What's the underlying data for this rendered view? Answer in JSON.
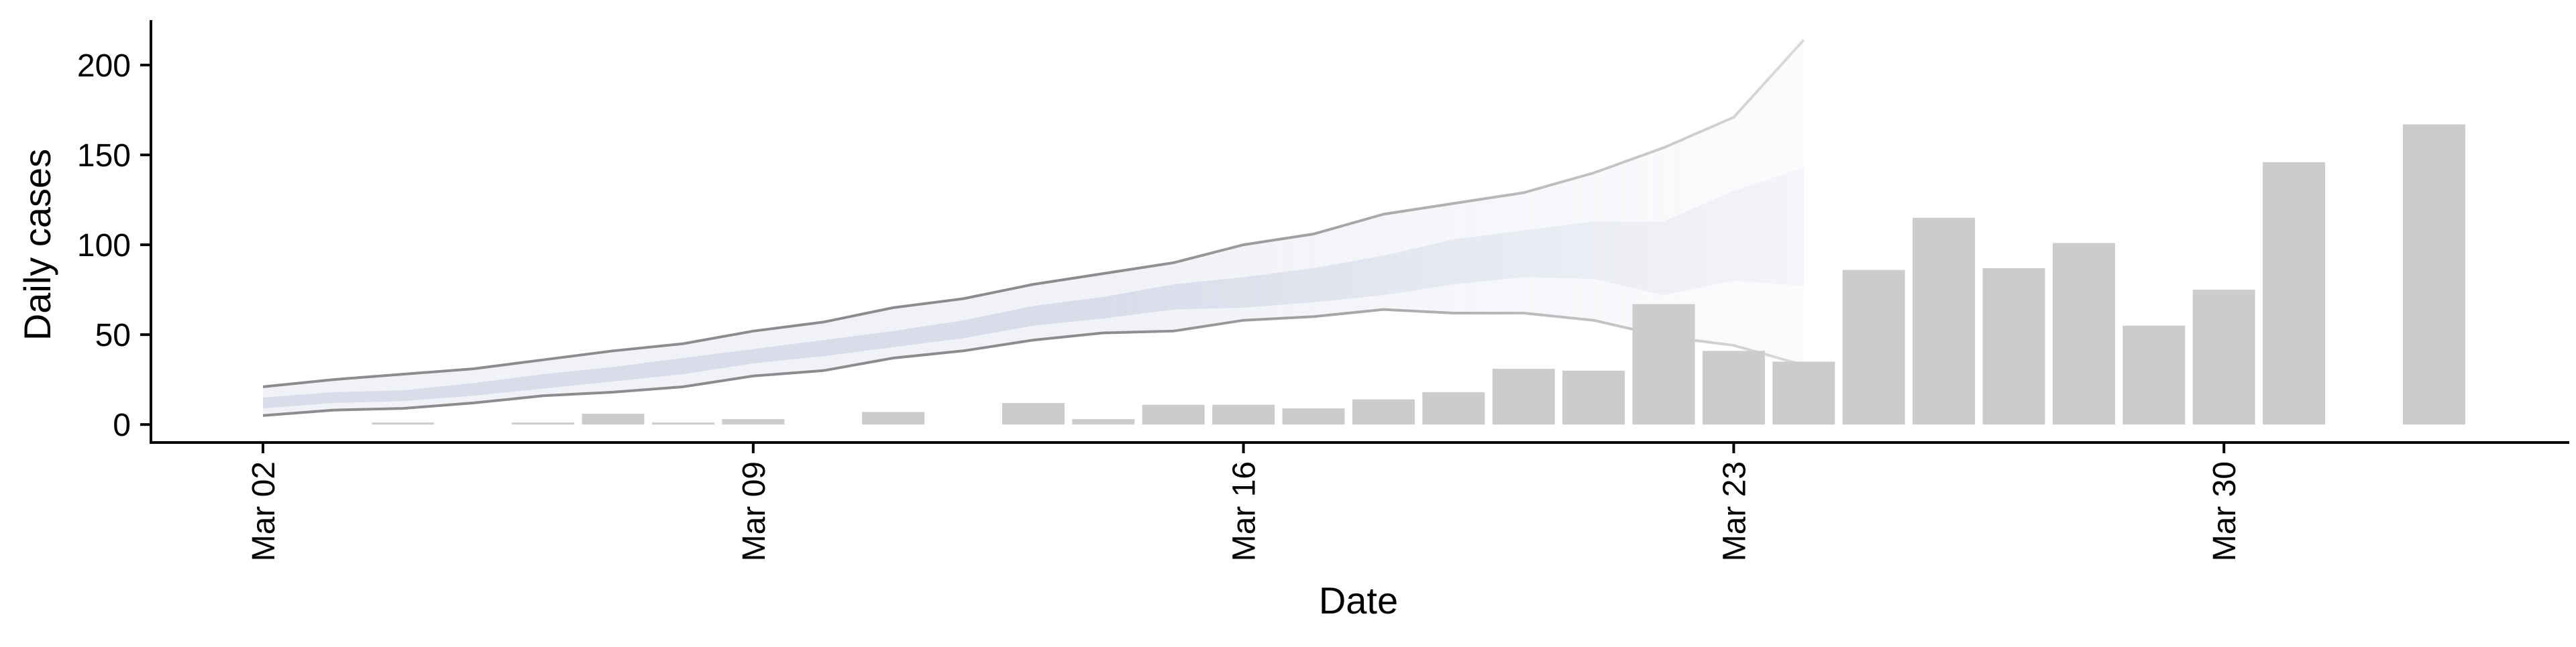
{
  "chart_data": {
    "type": "bar",
    "xlabel": "Date",
    "ylabel": "Daily cases",
    "x_ticks": [
      "Mar 02",
      "Mar 09",
      "Mar 16",
      "Mar 23",
      "Mar 30"
    ],
    "y_ticks": [
      0,
      50,
      100,
      150,
      200
    ],
    "ylim": [
      -10,
      225
    ],
    "grid": false,
    "legend": "none",
    "bars": {
      "color": "#cccccc",
      "dates": [
        "Mar 04",
        "Mar 06",
        "Mar 07",
        "Mar 08",
        "Mar 09",
        "Mar 11",
        "Mar 13",
        "Mar 14",
        "Mar 15",
        "Mar 16",
        "Mar 17",
        "Mar 18",
        "Mar 19",
        "Mar 20",
        "Mar 21",
        "Mar 22",
        "Mar 23",
        "Mar 24",
        "Mar 25",
        "Mar 26",
        "Mar 27",
        "Mar 28",
        "Mar 29",
        "Mar 30",
        "Mar 31",
        "Apr 02"
      ],
      "values": [
        1,
        1,
        6,
        1,
        3,
        7,
        12,
        3,
        11,
        11,
        9,
        14,
        18,
        31,
        30,
        67,
        41,
        35,
        86,
        115,
        87,
        101,
        55,
        75,
        146,
        167
      ]
    },
    "forecast": {
      "dates": [
        "Mar 02",
        "Mar 03",
        "Mar 04",
        "Mar 05",
        "Mar 06",
        "Mar 07",
        "Mar 08",
        "Mar 09",
        "Mar 10",
        "Mar 11",
        "Mar 12",
        "Mar 13",
        "Mar 14",
        "Mar 15",
        "Mar 16",
        "Mar 17",
        "Mar 18",
        "Mar 19",
        "Mar 20",
        "Mar 21",
        "Mar 22",
        "Mar 23",
        "Mar 24"
      ],
      "lower_outer": [
        5,
        8,
        9,
        12,
        16,
        18,
        21,
        27,
        30,
        37,
        41,
        47,
        51,
        52,
        58,
        60,
        64,
        62,
        62,
        58,
        49,
        44,
        33
      ],
      "lower_inner": [
        9,
        12,
        13,
        16,
        20,
        24,
        28,
        34,
        38,
        43,
        48,
        55,
        59,
        64,
        65,
        68,
        72,
        78,
        82,
        81,
        72,
        80,
        77
      ],
      "upper_inner": [
        15,
        18,
        19,
        23,
        28,
        32,
        37,
        42,
        47,
        52,
        58,
        66,
        71,
        78,
        82,
        87,
        94,
        103,
        108,
        113,
        113,
        130,
        143
      ],
      "upper_outer": [
        21,
        25,
        28,
        31,
        36,
        41,
        45,
        52,
        57,
        65,
        70,
        78,
        84,
        90,
        100,
        106,
        117,
        123,
        129,
        140,
        154,
        171,
        214
      ],
      "band_color": "#bcc3da",
      "line_color": "#8c8c8c"
    }
  }
}
